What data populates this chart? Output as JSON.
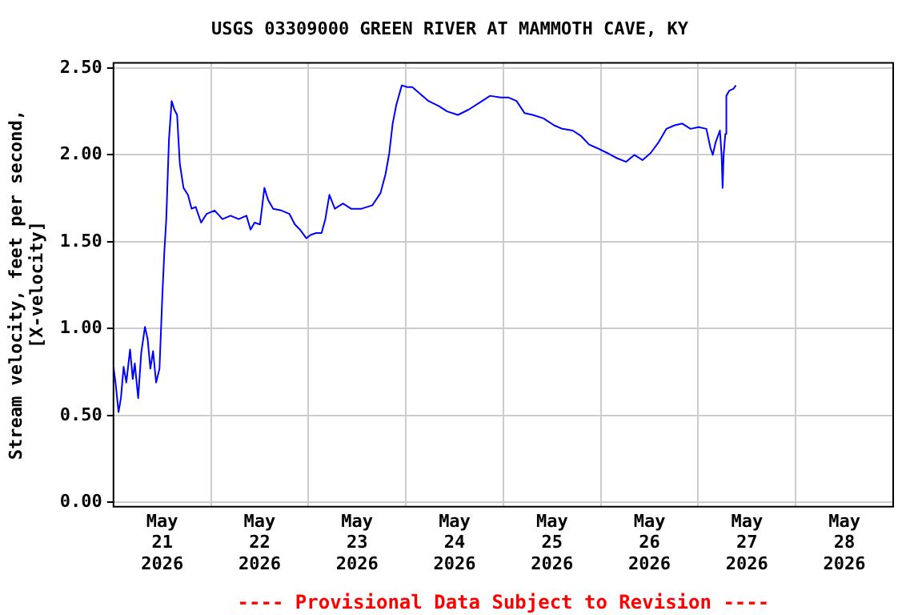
{
  "chart_data": {
    "type": "line",
    "title": "USGS 03309000 GREEN RIVER AT MAMMOTH CAVE, KY",
    "ylabel": "Stream velocity, feet per second,\n[X-velocity]",
    "annotations": [
      "---- Provisional Data Subject to Revision ----"
    ],
    "xlim": [
      "2026-05-21T00:00",
      "2026-05-29T00:00"
    ],
    "xticks": [
      {
        "value": "2026-05-21T12:00",
        "label": "May\n21\n2026"
      },
      {
        "value": "2026-05-22T00:00",
        "label": null
      },
      {
        "value": "2026-05-22T12:00",
        "label": "May\n22\n2026"
      },
      {
        "value": "2026-05-23T00:00",
        "label": null
      },
      {
        "value": "2026-05-23T12:00",
        "label": "May\n23\n2026"
      },
      {
        "value": "2026-05-24T00:00",
        "label": null
      },
      {
        "value": "2026-05-24T12:00",
        "label": "May\n24\n2026"
      },
      {
        "value": "2026-05-25T00:00",
        "label": null
      },
      {
        "value": "2026-05-25T12:00",
        "label": "May\n25\n2026"
      },
      {
        "value": "2026-05-26T00:00",
        "label": null
      },
      {
        "value": "2026-05-26T12:00",
        "label": "May\n26\n2026"
      },
      {
        "value": "2026-05-27T00:00",
        "label": null
      },
      {
        "value": "2026-05-27T12:00",
        "label": "May\n27\n2026"
      },
      {
        "value": "2026-05-28T00:00",
        "label": null
      },
      {
        "value": "2026-05-28T12:00",
        "label": "May\n28\n2026"
      }
    ],
    "ylim": [
      -0.025,
      2.53
    ],
    "yticks": [
      {
        "value": 0,
        "label": "0.00"
      },
      {
        "value": 0.5,
        "label": "0.50"
      },
      {
        "value": 1,
        "label": "1.00"
      },
      {
        "value": 1.5,
        "label": "1.50"
      },
      {
        "value": 2,
        "label": "2.00"
      },
      {
        "value": 2.5,
        "label": "2.50"
      }
    ],
    "grid": true,
    "series": [
      {
        "color": "#0000ff",
        "x": [
          "2026-05-21T00:00",
          "2026-05-21T00:30",
          "2026-05-21T01:15",
          "2026-05-21T01:50",
          "2026-05-21T02:30",
          "2026-05-21T03:10",
          "2026-05-21T04:05",
          "2026-05-21T04:45",
          "2026-05-21T05:15",
          "2026-05-21T06:05",
          "2026-05-21T06:50",
          "2026-05-21T07:45",
          "2026-05-21T08:25",
          "2026-05-21T09:05",
          "2026-05-21T09:45",
          "2026-05-21T10:30",
          "2026-05-21T11:20",
          "2026-05-21T12:00",
          "2026-05-21T12:30",
          "2026-05-21T13:00",
          "2026-05-21T13:40",
          "2026-05-21T14:20",
          "2026-05-21T15:00",
          "2026-05-21T15:40",
          "2026-05-21T16:20",
          "2026-05-21T17:15",
          "2026-05-21T18:20",
          "2026-05-21T19:15",
          "2026-05-21T20:15",
          "2026-05-21T21:35",
          "2026-05-21T22:55",
          "2026-05-22T00:55",
          "2026-05-22T02:50",
          "2026-05-22T04:50",
          "2026-05-22T06:50",
          "2026-05-22T08:45",
          "2026-05-22T09:45",
          "2026-05-22T10:45",
          "2026-05-22T12:05",
          "2026-05-22T13:10",
          "2026-05-22T14:05",
          "2026-05-22T15:20",
          "2026-05-22T17:20",
          "2026-05-22T19:20",
          "2026-05-22T20:40",
          "2026-05-22T21:55",
          "2026-05-22T23:30",
          "2026-05-23T00:35",
          "2026-05-23T01:55",
          "2026-05-23T03:15",
          "2026-05-23T04:10",
          "2026-05-23T05:10",
          "2026-05-23T06:30",
          "2026-05-23T08:30",
          "2026-05-23T10:30",
          "2026-05-23T13:05",
          "2026-05-23T15:45",
          "2026-05-23T17:45",
          "2026-05-23T19:00",
          "2026-05-23T19:55",
          "2026-05-23T20:45",
          "2026-05-23T21:40",
          "2026-05-23T23:00",
          "2026-05-24T00:20",
          "2026-05-24T01:35",
          "2026-05-24T03:35",
          "2026-05-24T05:35",
          "2026-05-24T08:10",
          "2026-05-24T10:10",
          "2026-05-24T12:50",
          "2026-05-24T15:25",
          "2026-05-24T18:05",
          "2026-05-24T20:45",
          "2026-05-24T23:20",
          "2026-05-25T01:20",
          "2026-05-25T03:15",
          "2026-05-25T05:15",
          "2026-05-25T07:15",
          "2026-05-25T09:55",
          "2026-05-25T12:30",
          "2026-05-25T14:30",
          "2026-05-25T17:05",
          "2026-05-25T19:05",
          "2026-05-25T21:05",
          "2026-05-25T23:00",
          "2026-05-26T01:40",
          "2026-05-26T04:05",
          "2026-05-26T06:15",
          "2026-05-26T08:15",
          "2026-05-26T10:15",
          "2026-05-26T12:15",
          "2026-05-26T14:10",
          "2026-05-26T16:10",
          "2026-05-26T18:10",
          "2026-05-26T20:05",
          "2026-05-26T22:05",
          "2026-05-27T00:05",
          "2026-05-27T02:00",
          "2026-05-27T03:00",
          "2026-05-27T03:35",
          "2026-05-27T04:15",
          "2026-05-27T05:20",
          "2026-05-27T05:45",
          "2026-05-27T06:00",
          "2026-05-27T06:15",
          "2026-05-27T06:40",
          "2026-05-27T06:55",
          "2026-05-27T07:40",
          "2026-05-27T08:40",
          "2026-05-27T09:15"
        ],
        "values": [
          0.78,
          0.69,
          0.52,
          0.6,
          0.78,
          0.69,
          0.88,
          0.71,
          0.8,
          0.6,
          0.86,
          1.01,
          0.94,
          0.77,
          0.87,
          0.69,
          0.77,
          1.17,
          1.43,
          1.63,
          2.09,
          2.31,
          2.26,
          2.23,
          1.95,
          1.81,
          1.77,
          1.69,
          1.7,
          1.61,
          1.66,
          1.68,
          1.63,
          1.65,
          1.63,
          1.65,
          1.57,
          1.61,
          1.6,
          1.81,
          1.74,
          1.69,
          1.68,
          1.66,
          1.6,
          1.57,
          1.52,
          1.54,
          1.55,
          1.55,
          1.63,
          1.77,
          1.69,
          1.72,
          1.69,
          1.69,
          1.71,
          1.78,
          1.89,
          2.01,
          2.18,
          2.29,
          2.4,
          2.39,
          2.39,
          2.35,
          2.31,
          2.28,
          2.25,
          2.23,
          2.26,
          2.3,
          2.34,
          2.33,
          2.33,
          2.31,
          2.24,
          2.23,
          2.21,
          2.17,
          2.15,
          2.14,
          2.11,
          2.06,
          2.04,
          2.01,
          1.98,
          1.96,
          2.0,
          1.97,
          2.01,
          2.07,
          2.15,
          2.17,
          2.18,
          2.15,
          2.16,
          2.15,
          2.04,
          2.0,
          2.07,
          2.14,
          2.0,
          1.81,
          2.0,
          2.12,
          2.34,
          2.37,
          2.38,
          2.4
        ]
      }
    ]
  }
}
